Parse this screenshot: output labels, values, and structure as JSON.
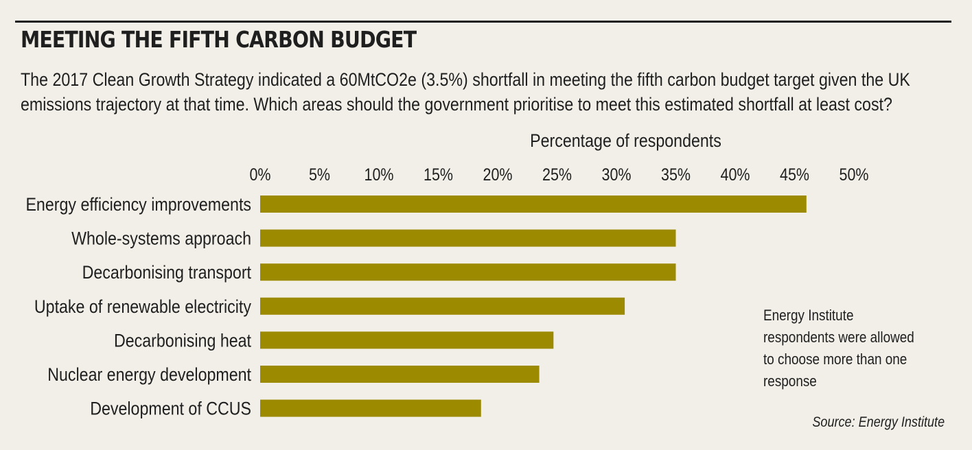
{
  "header": {
    "title": "MEETING THE FIFTH CARBON BUDGET",
    "subtitle_line1": "The 2017 Clean Growth Strategy indicated a 60MtCO2e (3.5%) shortfall in meeting the fifth carbon budget target given the UK",
    "subtitle_line2": "emissions trajectory at that time. Which areas should the government prioritise to meet this estimated shortfall at least cost?"
  },
  "note": "Energy Institute respondents were allowed to choose more than one response",
  "source": "Source: Energy Institute",
  "colors": {
    "bar": "#9c8a00",
    "background": "#f1efe7"
  },
  "chart_data": {
    "type": "bar",
    "orientation": "horizontal",
    "xlabel": "Percentage of respondents",
    "xlabel_position": "top",
    "xlim": [
      0,
      50
    ],
    "ticks": [
      "0%",
      "5%",
      "10%",
      "15%",
      "20%",
      "25%",
      "30%",
      "35%",
      "40%",
      "45%",
      "50%"
    ],
    "categories": [
      "Energy efficiency improvements",
      "Whole-systems approach",
      "Decarbonising transport",
      "Uptake of renewable electricity",
      "Decarbonising heat",
      "Nuclear energy development",
      "Development of CCUS"
    ],
    "values": [
      46,
      35,
      35,
      30.7,
      24.7,
      23.5,
      18.6
    ],
    "grid": false
  }
}
